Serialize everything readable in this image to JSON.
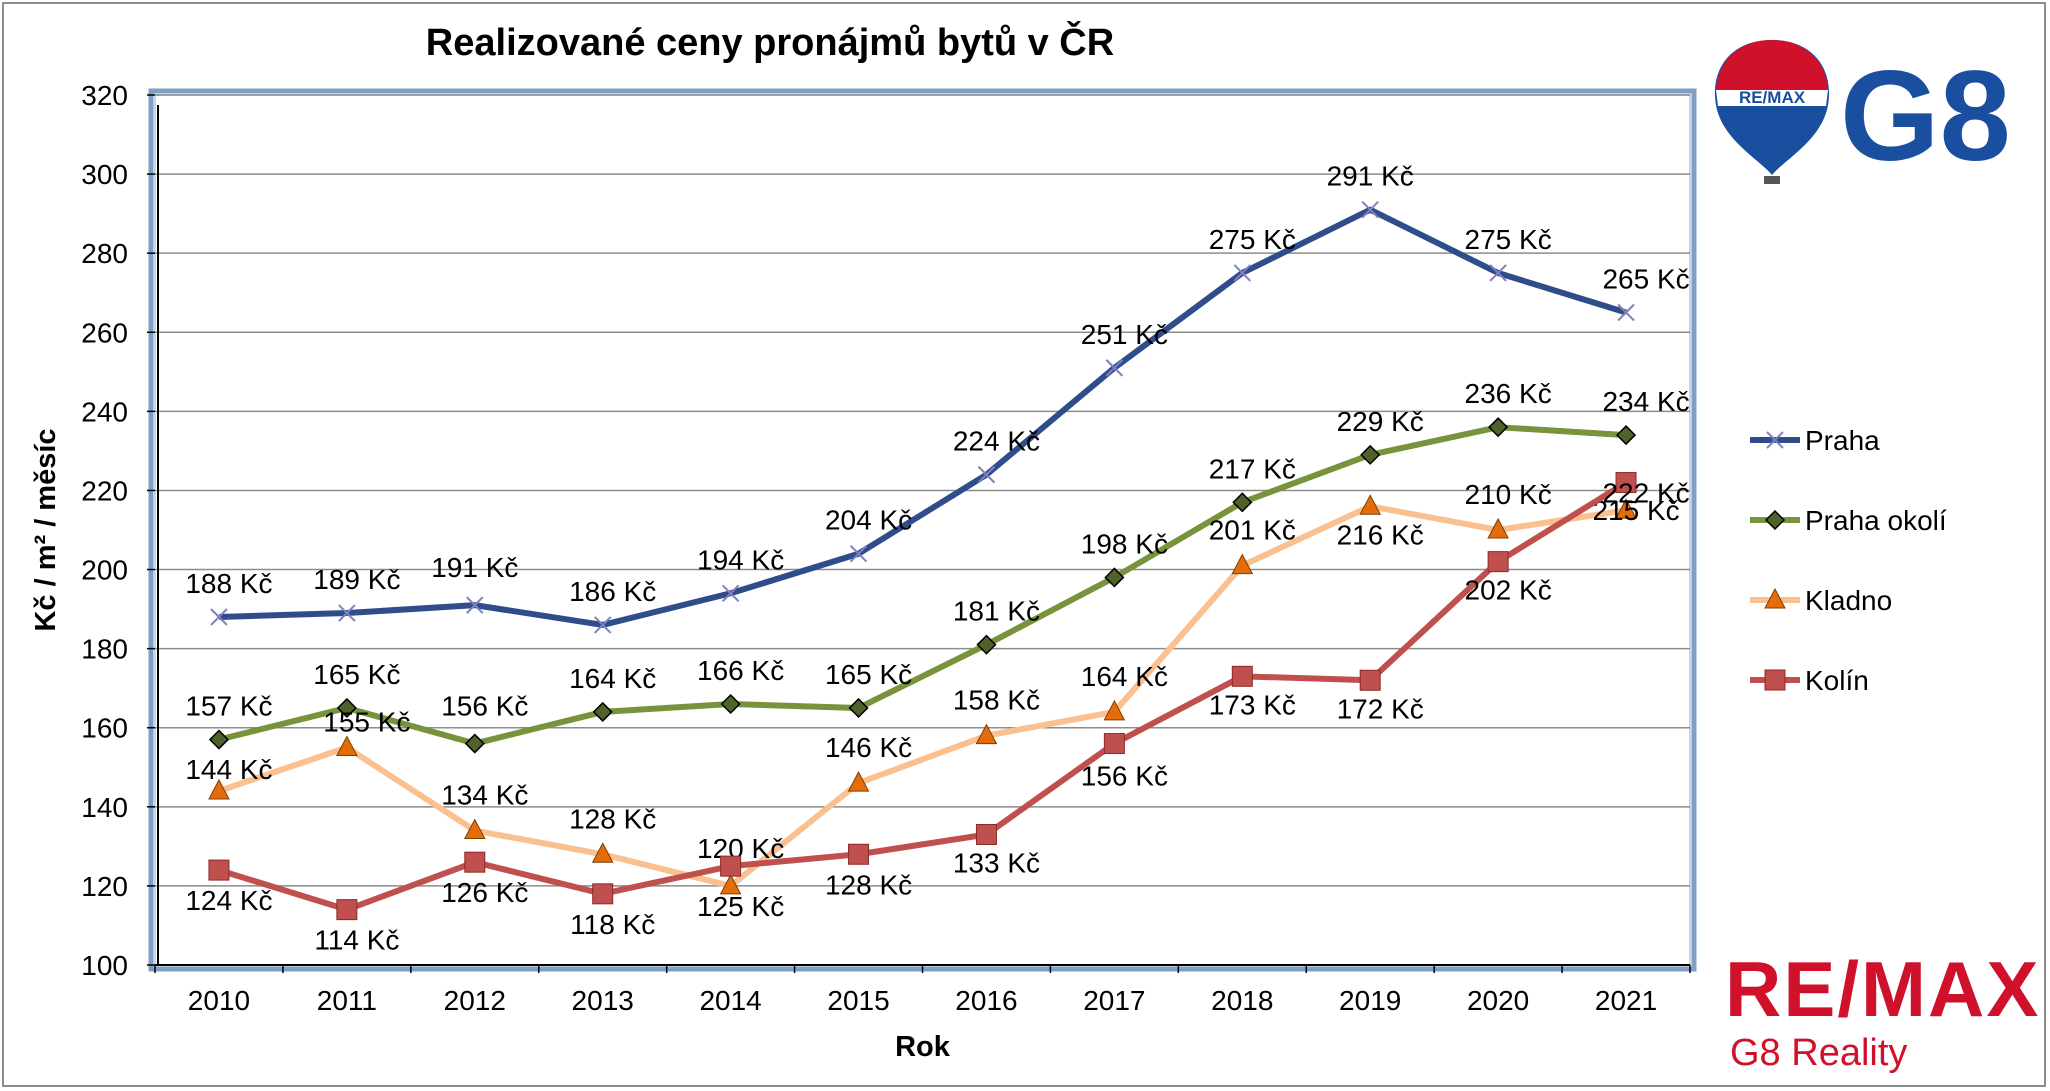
{
  "chart_data": {
    "type": "line",
    "title": "Realizované ceny pronájmů bytů v ČR",
    "xlabel": "Rok",
    "ylabel": "Kč / m² / měsíc",
    "x": [
      "2010",
      "2011",
      "2012",
      "2013",
      "2014",
      "2015",
      "2016",
      "2017",
      "2018",
      "2019",
      "2020",
      "2021"
    ],
    "ylim": [
      100,
      320
    ],
    "yticks": [
      "100",
      "120",
      "140",
      "160",
      "180",
      "200",
      "220",
      "240",
      "260",
      "280",
      "300",
      "320"
    ],
    "grid": true,
    "legend_position": "right",
    "series": [
      {
        "name": "Praha",
        "color": "#2e4d8a",
        "marker": "x",
        "values": [
          188,
          189,
          191,
          186,
          194,
          204,
          224,
          251,
          275,
          291,
          275,
          265
        ],
        "labels": [
          "188 Kč",
          "189 Kč",
          "191 Kč",
          "186 Kč",
          "194 Kč",
          "204 Kč",
          "224 Kč",
          "251 Kč",
          "275 Kč",
          "291 Kč",
          "275 Kč",
          "265 Kč"
        ]
      },
      {
        "name": "Praha okolí",
        "color": "#77933c",
        "marker": "diamond",
        "values": [
          157,
          165,
          156,
          164,
          166,
          165,
          181,
          198,
          217,
          229,
          236,
          234
        ],
        "labels": [
          "157 Kč",
          "165 Kč",
          "156 Kč",
          "164 Kč",
          "166 Kč",
          "165 Kč",
          "181 Kč",
          "198 Kč",
          "217 Kč",
          "229 Kč",
          "236 Kč",
          "234 Kč"
        ]
      },
      {
        "name": "Kladno",
        "color": "#fac090",
        "marker": "triangle",
        "values": [
          144,
          155,
          134,
          128,
          120,
          146,
          158,
          164,
          201,
          216,
          210,
          215
        ],
        "labels": [
          "144 Kč",
          "155 Kč",
          "134 Kč",
          "128 Kč",
          "120 Kč",
          "146 Kč",
          "158 Kč",
          "164 Kč",
          "201 Kč",
          "216 Kč",
          "210 Kč",
          "215 Kč"
        ]
      },
      {
        "name": "Kolín",
        "color": "#c0504d",
        "marker": "square",
        "values": [
          124,
          114,
          126,
          118,
          125,
          128,
          133,
          156,
          173,
          172,
          202,
          222
        ],
        "labels": [
          "124 Kč",
          "114 Kč",
          "126 Kč",
          "118 Kč",
          "125 Kč",
          "128 Kč",
          "133 Kč",
          "156 Kč",
          "173 Kč",
          "172 Kč",
          "202 Kč",
          "222 Kč"
        ]
      }
    ]
  },
  "branding": {
    "logo_balloon_text": "RE/MAX",
    "logo_g8_text": "G8",
    "remax_text": "RE/MAX",
    "sub_text": "G8 Reality"
  }
}
